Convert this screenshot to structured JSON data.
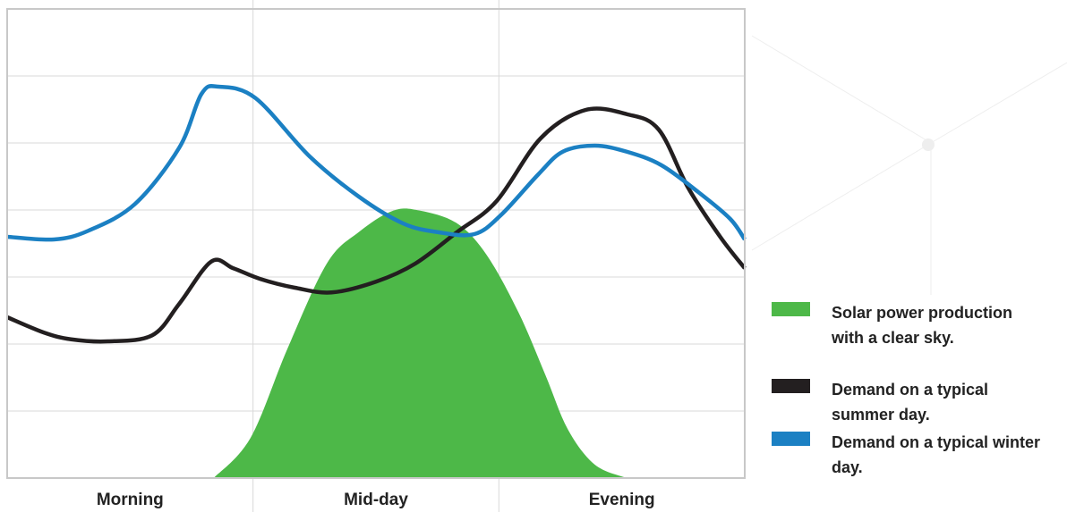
{
  "chart_data": {
    "type": "line",
    "categories": [
      "Morning",
      "Mid-day",
      "Evening"
    ],
    "xlim": [
      0,
      3
    ],
    "ylim": [
      0,
      7
    ],
    "xticks": [
      1,
      2
    ],
    "yticks": [
      1,
      2,
      3,
      4,
      5,
      6
    ],
    "grid": true,
    "legend": "right",
    "series": [
      {
        "name": "Solar power production with a clear sky.",
        "color": "#4db848",
        "type": "area",
        "x": [
          0.84,
          0.99,
          1.14,
          1.3,
          1.43,
          1.57,
          1.68,
          1.83,
          1.95,
          2.08,
          2.19,
          2.28,
          2.39,
          2.52
        ],
        "values": [
          0,
          0.6,
          1.93,
          3.2,
          3.67,
          3.99,
          3.99,
          3.8,
          3.33,
          2.47,
          1.53,
          0.73,
          0.2,
          0
        ]
      },
      {
        "name": "Demand on a typical summer day.",
        "color": "#231f20",
        "x": [
          0,
          0.15,
          0.26,
          0.41,
          0.59,
          0.7,
          0.83,
          0.92,
          1.03,
          1.17,
          1.32,
          1.5,
          1.66,
          1.83,
          1.99,
          2.17,
          2.35,
          2.52,
          2.65,
          2.77,
          2.9,
          3.0
        ],
        "values": [
          2.4,
          2.17,
          2.07,
          2.04,
          2.13,
          2.6,
          3.23,
          3.13,
          2.97,
          2.84,
          2.77,
          2.93,
          3.2,
          3.67,
          4.13,
          5.07,
          5.49,
          5.43,
          5.2,
          4.33,
          3.6,
          3.13
        ]
      },
      {
        "name": "Demand on a typical winter day.",
        "color": "#1b80c3",
        "x": [
          0,
          0.19,
          0.33,
          0.52,
          0.7,
          0.79,
          0.86,
          1.01,
          1.23,
          1.43,
          1.61,
          1.75,
          1.9,
          2.01,
          2.16,
          2.26,
          2.39,
          2.52,
          2.66,
          2.81,
          2.94,
          3.0
        ],
        "values": [
          3.6,
          3.56,
          3.69,
          4.09,
          4.93,
          5.73,
          5.84,
          5.67,
          4.8,
          4.2,
          3.8,
          3.67,
          3.64,
          3.93,
          4.53,
          4.87,
          4.96,
          4.87,
          4.67,
          4.27,
          3.87,
          3.56
        ]
      }
    ]
  }
}
